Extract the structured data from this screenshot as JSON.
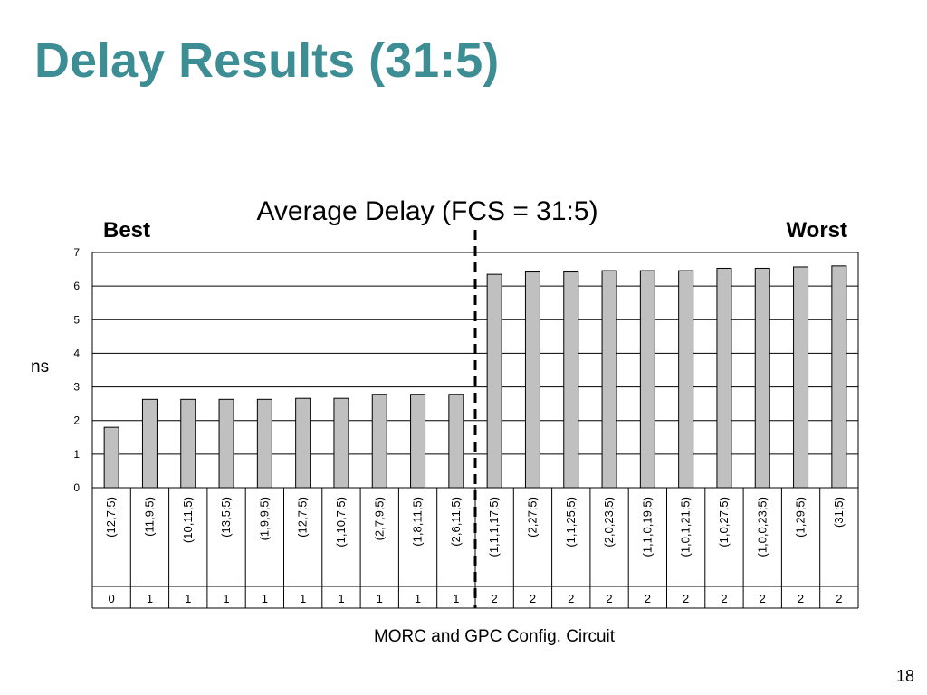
{
  "slide": {
    "title": "Delay Results (31:5)",
    "page_number": "18"
  },
  "annotations": {
    "best": "Best",
    "worst": "Worst"
  },
  "colors": {
    "title": "#3c8d94",
    "bar_fill": "#c0c0c0",
    "bar_stroke": "#000000",
    "divider": "#000000"
  },
  "chart_data": {
    "type": "bar",
    "title": "Average Delay (FCS = 31:5)",
    "xlabel": "MORC and GPC Config. Circuit",
    "ylabel": "ns",
    "ylim": [
      0,
      7
    ],
    "yticks": [
      0,
      1,
      2,
      3,
      4,
      5,
      6,
      7
    ],
    "grid": true,
    "legend": "none",
    "categories": [
      "(12,7;5)",
      "(11,9;5)",
      "(10,11;5)",
      "(13,5;5)",
      "(1,9,9;5)",
      "(12,7;5)",
      "(1,10,7;5)",
      "(2,7,9;5)",
      "(1,8,11;5)",
      "(2,6,11;5)",
      "(1,1,1,17;5)",
      "(2,27;5)",
      "(1,1,25;5)",
      "(2,0,23;5)",
      "(1,1,0,19;5)",
      "(1,0,1,21;5)",
      "(1,0,27;5)",
      "(1,0,0,23;5)",
      "(1,29;5)",
      "(31;5)"
    ],
    "groups": [
      "0",
      "1",
      "1",
      "1",
      "1",
      "1",
      "1",
      "1",
      "1",
      "1",
      "2",
      "2",
      "2",
      "2",
      "2",
      "2",
      "2",
      "2",
      "2",
      "2"
    ],
    "values": [
      1.8,
      2.63,
      2.63,
      2.63,
      2.63,
      2.66,
      2.66,
      2.78,
      2.78,
      2.78,
      6.35,
      6.42,
      6.42,
      6.46,
      6.46,
      6.46,
      6.53,
      6.53,
      6.57,
      6.6
    ],
    "divider_after_index": 9
  }
}
